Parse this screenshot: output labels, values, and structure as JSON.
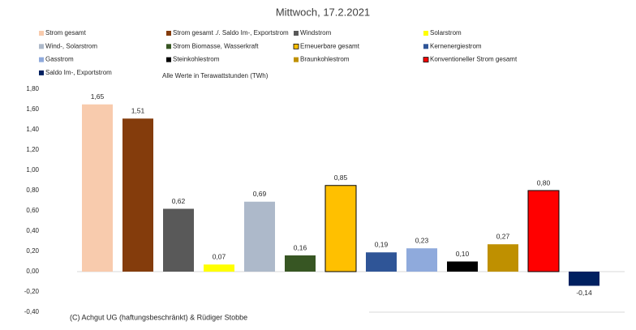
{
  "chart_data": {
    "type": "bar",
    "title": "Mittwoch,  17.2.2021",
    "subtitle": "Alle Werte in Terawattstunden (TWh)",
    "footnote": "(C) Achgut UG (haftungsbeschränkt) & Rüdiger Stobbe",
    "categories": [
      "Strom gesamt",
      "Strom gesamt ./. Saldo Im-, Exportstrom",
      "Windstrom",
      "Solarstrom",
      "Wind-, Solarstrom",
      "Strom Biomasse, Wasserkraft",
      "Erneuerbare gesamt",
      "Kernenergiestrom",
      "Gasstrom",
      "Steinkohlestrom",
      "Braunkohlestrom",
      "Konventioneller Strom gesamt",
      "Saldo Im-, Exportstrom"
    ],
    "values": [
      1.65,
      1.51,
      0.62,
      0.07,
      0.69,
      0.16,
      0.85,
      0.19,
      0.23,
      0.1,
      0.27,
      0.8,
      -0.14
    ],
    "value_labels": [
      "1,65",
      "1,51",
      "0,62",
      "0,07",
      "0,69",
      "0,16",
      "0,85",
      "0,19",
      "0,23",
      "0,10",
      "0,27",
      "0,80",
      "-0,14"
    ],
    "colors": [
      "#f8cbad",
      "#843c0c",
      "#595959",
      "#ffff00",
      "#adb9ca",
      "#375623",
      "#ffc000",
      "#2f5597",
      "#8faadc",
      "#000000",
      "#bf9000",
      "#ff0000",
      "#002060"
    ],
    "edgecolors": [
      null,
      null,
      null,
      null,
      null,
      null,
      "#000000",
      null,
      null,
      null,
      null,
      "#000000",
      null
    ],
    "ylim": [
      -0.4,
      1.8
    ],
    "yticks": [
      {
        "value": -0.4,
        "label": "-0,40"
      },
      {
        "value": -0.2,
        "label": "-0,20"
      },
      {
        "value": 0,
        "label": "0,00"
      },
      {
        "value": 0.2,
        "label": "0,20"
      },
      {
        "value": 0.4,
        "label": "0,40"
      },
      {
        "value": 0.6,
        "label": "0,60"
      },
      {
        "value": 0.8,
        "label": "0,80"
      },
      {
        "value": 1.0,
        "label": "1,00"
      },
      {
        "value": 1.2,
        "label": "1,20"
      },
      {
        "value": 1.4,
        "label": "1,40"
      },
      {
        "value": 1.6,
        "label": "1,60"
      },
      {
        "value": 1.8,
        "label": "1,80"
      }
    ],
    "grid": false,
    "legend": "top"
  }
}
